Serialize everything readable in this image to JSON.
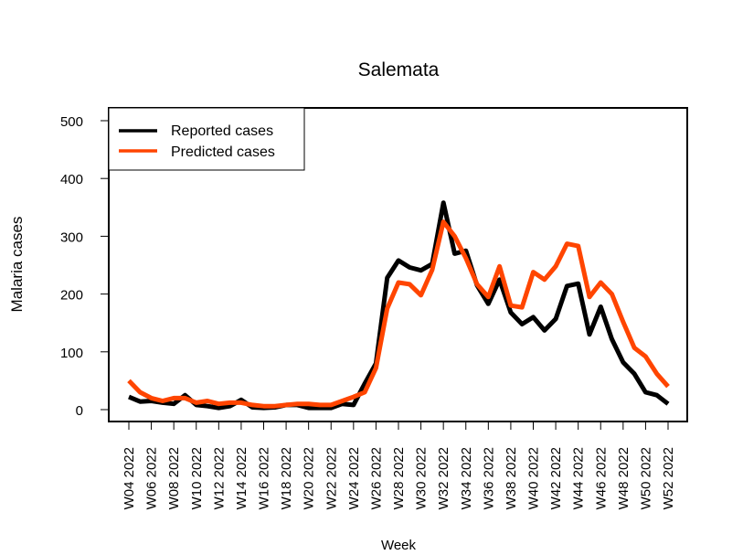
{
  "chart_data": {
    "type": "line",
    "title": "Salemata",
    "xlabel": "Week",
    "ylabel": "Malaria cases",
    "ylim": [
      0,
      500
    ],
    "yticks": [
      0,
      100,
      200,
      300,
      400,
      500
    ],
    "x": [
      "W04 2022",
      "W05 2022",
      "W06 2022",
      "W07 2022",
      "W08 2022",
      "W09 2022",
      "W10 2022",
      "W11 2022",
      "W12 2022",
      "W13 2022",
      "W14 2022",
      "W15 2022",
      "W16 2022",
      "W17 2022",
      "W18 2022",
      "W19 2022",
      "W20 2022",
      "W21 2022",
      "W22 2022",
      "W23 2022",
      "W24 2022",
      "W25 2022",
      "W26 2022",
      "W27 2022",
      "W28 2022",
      "W29 2022",
      "W30 2022",
      "W31 2022",
      "W32 2022",
      "W33 2022",
      "W34 2022",
      "W35 2022",
      "W36 2022",
      "W37 2022",
      "W38 2022",
      "W39 2022",
      "W40 2022",
      "W41 2022",
      "W42 2022",
      "W43 2022",
      "W44 2022",
      "W45 2022",
      "W46 2022",
      "W47 2022",
      "W48 2022",
      "W49 2022",
      "W50 2022",
      "W51 2022",
      "W52 2022"
    ],
    "xtick_labels": [
      "W04 2022",
      "W06 2022",
      "W08 2022",
      "W10 2022",
      "W12 2022",
      "W14 2022",
      "W16 2022",
      "W18 2022",
      "W20 2022",
      "W22 2022",
      "W24 2022",
      "W26 2022",
      "W28 2022",
      "W30 2022",
      "W32 2022",
      "W34 2022",
      "W36 2022",
      "W38 2022",
      "W40 2022",
      "W42 2022",
      "W44 2022",
      "W46 2022",
      "W48 2022",
      "W50 2022",
      "W52 2022"
    ],
    "series": [
      {
        "name": "Reported cases",
        "color": "#000000",
        "values": [
          22,
          14,
          15,
          12,
          10,
          25,
          8,
          6,
          3,
          6,
          17,
          4,
          3,
          4,
          8,
          8,
          3,
          3,
          3,
          10,
          8,
          45,
          80,
          228,
          258,
          246,
          241,
          252,
          358,
          270,
          275,
          215,
          183,
          225,
          168,
          148,
          160,
          137,
          157,
          214,
          218,
          130,
          178,
          122,
          82,
          62,
          30,
          25,
          10
        ]
      },
      {
        "name": "Predicted cases",
        "color": "#ff4500",
        "values": [
          50,
          30,
          20,
          15,
          20,
          20,
          12,
          15,
          10,
          12,
          12,
          8,
          6,
          6,
          8,
          10,
          10,
          8,
          8,
          15,
          22,
          30,
          72,
          175,
          220,
          217,
          198,
          242,
          325,
          300,
          262,
          217,
          195,
          248,
          180,
          177,
          238,
          225,
          248,
          287,
          283,
          195,
          220,
          200,
          152,
          107,
          92,
          62,
          40
        ]
      }
    ],
    "legend": {
      "position": "top-left",
      "entries": [
        "Reported cases",
        "Predicted cases"
      ]
    },
    "grid": false
  }
}
